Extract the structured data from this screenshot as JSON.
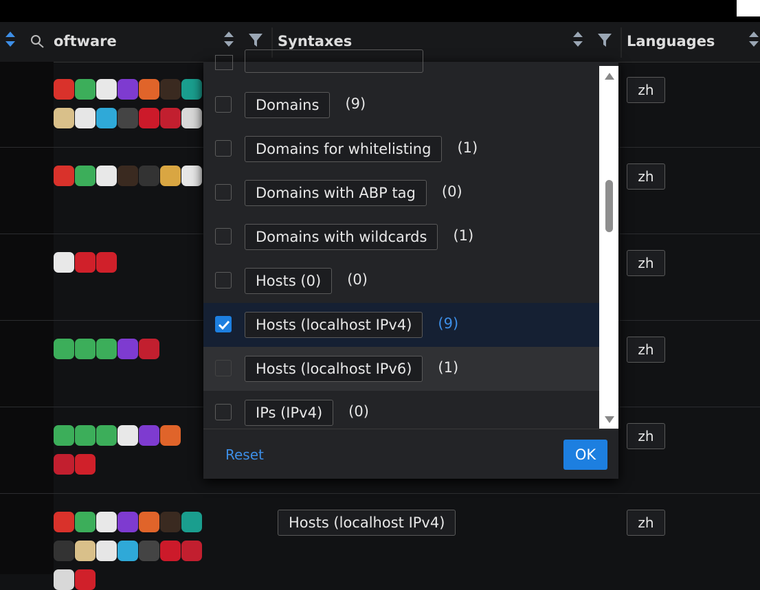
{
  "header": {
    "columns": [
      "oftware",
      "Syntaxes",
      "Languages"
    ]
  },
  "filter_menu": {
    "items": [
      {
        "label": "Domains",
        "count": "(9)",
        "checked": false
      },
      {
        "label": "Domains for whitelisting",
        "count": "(1)",
        "checked": false
      },
      {
        "label": "Domains with ABP tag",
        "count": "(0)",
        "checked": false
      },
      {
        "label": "Domains with wildcards",
        "count": "(1)",
        "checked": false
      },
      {
        "label": "Hosts (0)",
        "count": "(0)",
        "checked": false
      },
      {
        "label": "Hosts (localhost IPv4)",
        "count": "(9)",
        "checked": true
      },
      {
        "label": "Hosts (localhost IPv6)",
        "count": "(1)",
        "checked": false
      },
      {
        "label": "IPs (IPv4)",
        "count": "(0)",
        "checked": false
      }
    ],
    "reset": "Reset",
    "ok": "OK"
  },
  "rows": [
    {
      "language": "zh"
    },
    {
      "language": "zh"
    },
    {
      "language": "zh"
    },
    {
      "language": "zh"
    },
    {
      "language": "zh"
    },
    {
      "syntax": "Hosts (localhost IPv4)",
      "language": "zh"
    }
  ]
}
